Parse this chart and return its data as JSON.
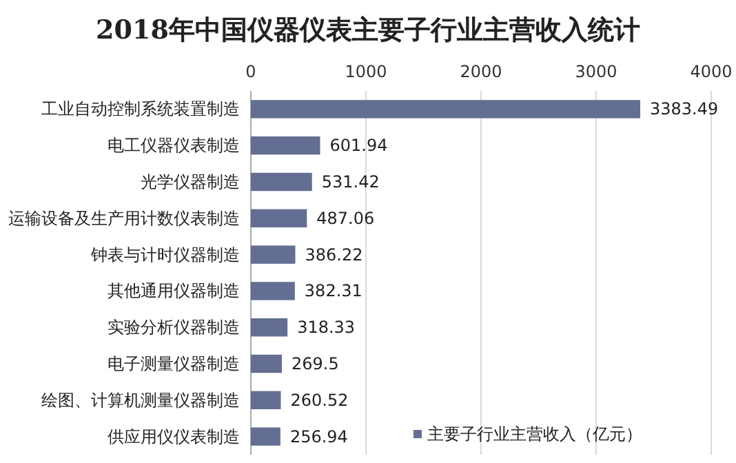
{
  "chart_data": {
    "type": "bar",
    "orientation": "horizontal",
    "title": "2018年中国仪器仪表主要子行业主营收入统计",
    "categories": [
      "工业自动控制系统装置制造",
      "电工仪器仪表制造",
      "光学仪器制造",
      "运输设备及生产用计数仪表制造",
      "钟表与计时仪器制造",
      "其他通用仪器制造",
      "实验分析仪器制造",
      "电子测量仪器制造",
      "绘图、计算机测量仪器制造",
      "供应用仪仪表制造"
    ],
    "series": [
      {
        "name": "主要子行业主营收入（亿元）",
        "color": "#636e92",
        "values": [
          3383.49,
          601.94,
          531.42,
          487.06,
          386.22,
          382.31,
          318.33,
          269.5,
          260.52,
          256.94
        ]
      }
    ],
    "xlim": [
      0,
      4000
    ],
    "xticks": [
      0,
      1000,
      2000,
      3000,
      4000
    ],
    "grid": "x",
    "legend": "bottom right",
    "data_labels": true
  }
}
